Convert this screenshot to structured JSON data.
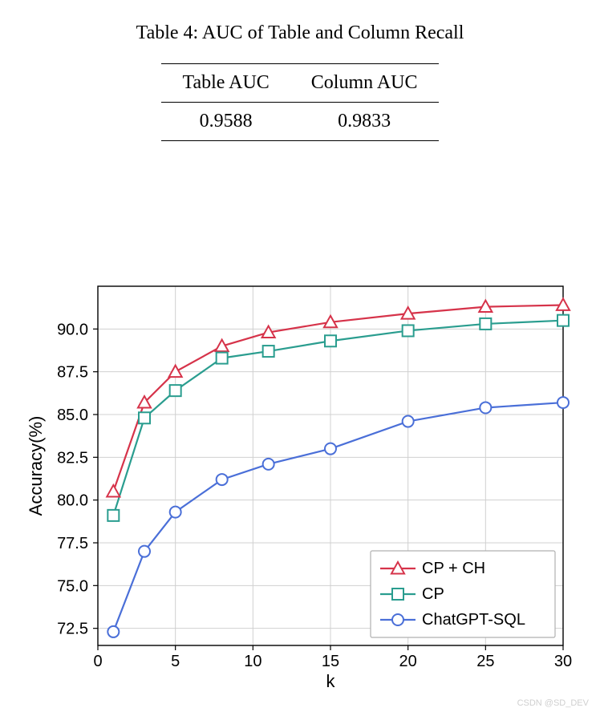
{
  "table": {
    "caption": "Table 4: AUC of Table and Column Recall",
    "columns": [
      "Table AUC",
      "Column AUC"
    ],
    "rows": [
      [
        "0.9588",
        "0.9833"
      ]
    ]
  },
  "chart": {
    "type": "line",
    "xlabel": "k",
    "ylabel": "Accuracy(%)",
    "xlim": [
      0,
      30
    ],
    "ylim": [
      71.5,
      92.5
    ],
    "xticks": [
      0,
      5,
      10,
      15,
      20,
      25,
      30
    ],
    "yticks": [
      72.5,
      75.0,
      77.5,
      80.0,
      82.5,
      85.0,
      87.5,
      90.0
    ],
    "xtick_labels": [
      "0",
      "5",
      "10",
      "15",
      "20",
      "25",
      "30"
    ],
    "ytick_labels": [
      "72.5",
      "75.0",
      "77.5",
      "80.0",
      "82.5",
      "85.0",
      "87.5",
      "90.0"
    ],
    "axis_color": "#000000",
    "grid_color": "#d0d0d0",
    "background_color": "#ffffff",
    "label_fontsize": 22,
    "tick_fontsize": 20,
    "line_width": 2.2,
    "marker_size": 7,
    "series": [
      {
        "name": "CP + CH",
        "color": "#d6334a",
        "marker": "triangle",
        "x": [
          1,
          3,
          5,
          8,
          11,
          15,
          20,
          25,
          30
        ],
        "y": [
          80.5,
          85.7,
          87.5,
          89.0,
          89.8,
          90.4,
          90.9,
          91.3,
          91.4
        ]
      },
      {
        "name": "CP",
        "color": "#2a9d8f",
        "marker": "square",
        "x": [
          1,
          3,
          5,
          8,
          11,
          15,
          20,
          25,
          30
        ],
        "y": [
          79.1,
          84.8,
          86.4,
          88.3,
          88.7,
          89.3,
          89.9,
          90.3,
          90.5
        ]
      },
      {
        "name": "ChatGPT-SQL",
        "color": "#4a6fd8",
        "marker": "circle",
        "x": [
          1,
          3,
          5,
          8,
          11,
          15,
          20,
          25,
          30
        ],
        "y": [
          72.3,
          77.0,
          79.3,
          81.2,
          82.1,
          83.0,
          84.6,
          85.4,
          85.7
        ]
      }
    ],
    "legend": {
      "position": "lower-right",
      "border_color": "#b0b0b0",
      "background": "#ffffff",
      "fontsize": 20
    }
  },
  "watermark": "CSDN @SD_DEV"
}
